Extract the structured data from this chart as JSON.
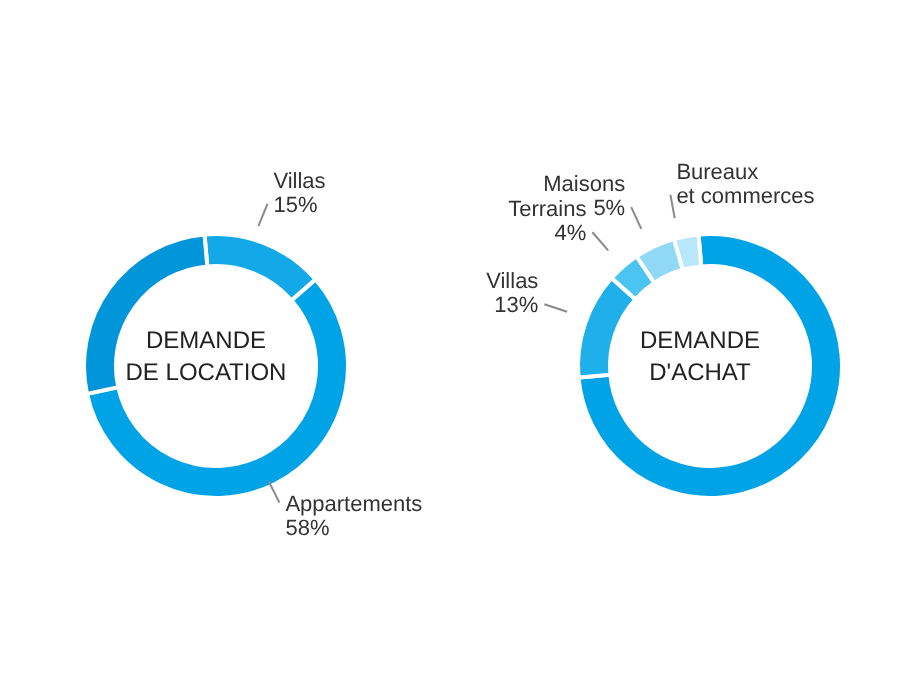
{
  "chart_data": [
    {
      "type": "donut",
      "title": "DEMANDE DE LOCATION",
      "categories": [
        "Villas",
        "Appartements",
        null
      ],
      "values": [
        15,
        58,
        27
      ],
      "colors": [
        "#13a9e9",
        "#00a3e6",
        "#0096d9"
      ],
      "value_labels": [
        "15%",
        "58%",
        null
      ],
      "legend": false
    },
    {
      "type": "donut",
      "title": "DEMANDE D'ACHAT",
      "categories": [
        null,
        "Villas",
        "Terrains",
        "Maisons",
        "Bureaux et commerces"
      ],
      "values": [
        75,
        13,
        4,
        5,
        3
      ],
      "colors": [
        "#00a3e6",
        "#1fb0ec",
        "#4cc4f2",
        "#8fd8f6",
        "#b8e6fa"
      ],
      "value_labels": [
        null,
        "13%",
        "4%",
        "5%",
        null
      ],
      "legend": false
    }
  ]
}
